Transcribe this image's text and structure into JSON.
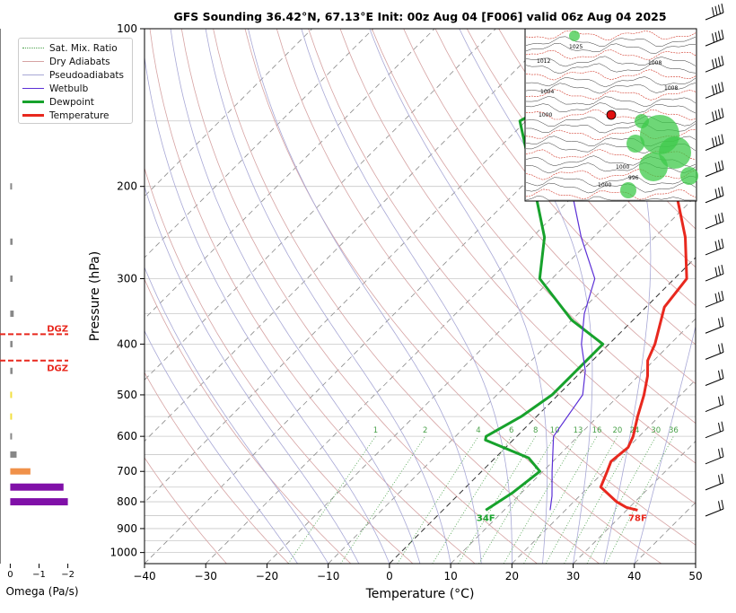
{
  "chart_data": [
    {
      "type": "line",
      "title": "GFS Sounding 36.42°N, 67.13°E Init: 00z Aug 04 [F006] valid 06z Aug 04 2025",
      "xlabel": "Temperature (°C)",
      "ylabel": "Pressure (hPa)",
      "xlim": [
        -40,
        50
      ],
      "ylim": [
        1050,
        100
      ],
      "yscale": "log",
      "skew": true,
      "x_ticks": [
        "−40",
        "−30",
        "−20",
        "−10",
        "0",
        "10",
        "20",
        "30",
        "40",
        "50"
      ],
      "y_ticks": [
        "100",
        "200",
        "300",
        "400",
        "500",
        "600",
        "700",
        "800",
        "900",
        "1000"
      ],
      "legend": [
        "Sat. Mix. Ratio",
        "Dry Adiabats",
        "Pseudoadiabats",
        "Wetbulb",
        "Dewpoint",
        "Temperature"
      ],
      "legend_position": "top-left",
      "mixing_ratio_labels": [
        "1",
        "2",
        "4",
        "6",
        "8",
        "10",
        "13",
        "16",
        "20",
        "24",
        "30",
        "36"
      ],
      "series": [
        {
          "name": "Temperature",
          "color": "#e8281e",
          "points": [
            [
              31.8,
              830
            ],
            [
              29.5,
              820
            ],
            [
              27,
              800
            ],
            [
              22,
              750
            ],
            [
              20.5,
              700
            ],
            [
              19.5,
              670
            ],
            [
              20,
              630
            ],
            [
              19,
              600
            ],
            [
              16.5,
              550
            ],
            [
              14,
              500
            ],
            [
              11.5,
              460
            ],
            [
              9,
              430
            ],
            [
              7.5,
              400
            ],
            [
              3,
              340
            ],
            [
              2,
              300
            ],
            [
              -5,
              250
            ],
            [
              -15,
              200
            ],
            [
              -30,
              150
            ],
            [
              -37,
              100
            ]
          ],
          "end_label": "78F"
        },
        {
          "name": "Dewpoint",
          "color": "#17a22c",
          "points": [
            [
              7,
              830
            ],
            [
              8.5,
              770
            ],
            [
              9.5,
              700
            ],
            [
              5.5,
              660
            ],
            [
              -4.5,
              610
            ],
            [
              -5,
              600
            ],
            [
              -2.5,
              550
            ],
            [
              -1,
              500
            ],
            [
              -1,
              460
            ],
            [
              -1,
              400
            ],
            [
              -10,
              360
            ],
            [
              -22,
              300
            ],
            [
              -28,
              250
            ],
            [
              -38,
              200
            ],
            [
              -51,
              150
            ],
            [
              -39,
              100
            ]
          ],
          "end_label": "34F"
        },
        {
          "name": "Wetbulb",
          "color": "#5b2fd6",
          "points": [
            [
              17.5,
              830
            ],
            [
              15.5,
              780
            ],
            [
              11.5,
              700
            ],
            [
              6,
              600
            ],
            [
              4,
              500
            ],
            [
              0.5,
              450
            ],
            [
              -4.5,
              400
            ],
            [
              -9,
              350
            ],
            [
              -13,
              300
            ],
            [
              -22,
              250
            ],
            [
              -32,
              200
            ],
            [
              -45,
              150
            ]
          ]
        }
      ],
      "wind_barbs_count": 20
    },
    {
      "type": "bar",
      "orientation": "horizontal",
      "xlabel": "Omega (Pa/s)",
      "x_ticks": [
        "0",
        "−1",
        "−2"
      ],
      "xlim": [
        0.2,
        -2.2
      ],
      "annotations": [
        {
          "label": "DGZ",
          "pressure": 383,
          "color": "#e8281e"
        },
        {
          "label": "DGZ",
          "pressure": 430,
          "color": "#e8281e"
        }
      ],
      "bars": [
        {
          "pressure": 200,
          "omega": -0.05,
          "color": "#888888"
        },
        {
          "pressure": 255,
          "omega": -0.08,
          "color": "#888888"
        },
        {
          "pressure": 300,
          "omega": -0.08,
          "color": "#888888"
        },
        {
          "pressure": 350,
          "omega": -0.12,
          "color": "#888888"
        },
        {
          "pressure": 400,
          "omega": -0.08,
          "color": "#888888"
        },
        {
          "pressure": 450,
          "omega": -0.08,
          "color": "#888888"
        },
        {
          "pressure": 500,
          "omega": -0.02,
          "color": "#f2e040"
        },
        {
          "pressure": 550,
          "omega": -0.02,
          "color": "#f2e040"
        },
        {
          "pressure": 600,
          "omega": -0.05,
          "color": "#888888"
        },
        {
          "pressure": 650,
          "omega": -0.22,
          "color": "#888888"
        },
        {
          "pressure": 700,
          "omega": -0.7,
          "color": "#f0914a"
        },
        {
          "pressure": 750,
          "omega": -1.85,
          "color": "#8010a8"
        },
        {
          "pressure": 800,
          "omega": -2.0,
          "color": "#8010a8"
        }
      ]
    }
  ],
  "inset_map": {
    "pressure_labels": [
      "1025",
      "1008",
      "1012",
      "1004",
      "1000",
      "1008",
      "1000",
      "996",
      "1000"
    ]
  },
  "colors": {
    "temperature": "#e8281e",
    "dewpoint": "#17a22c",
    "wetbulb": "#5b2fd6",
    "isotherm": "#6f6f6f",
    "dry_adiabat": "#d6a3a3",
    "moist_adiabat": "#a8a8d6",
    "mixing_ratio": "#48a048",
    "map_marker": "#e01010"
  }
}
